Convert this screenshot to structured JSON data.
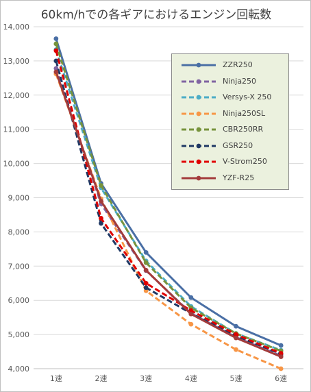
{
  "chart_data": {
    "type": "line",
    "title": "60km/hでの各ギアにおけるエンジン回転数",
    "categories": [
      "1速",
      "2速",
      "3速",
      "4速",
      "5速",
      "6速"
    ],
    "y_ticks": [
      "4,000",
      "5,000",
      "6,000",
      "7,000",
      "8,000",
      "9,000",
      "10,000",
      "11,000",
      "12,000",
      "13,000",
      "14,000"
    ],
    "ylim": [
      4000,
      14000
    ],
    "grid": true,
    "legend_position": "top-right",
    "series": [
      {
        "name": "ZZR250",
        "color": "#4a6fa5",
        "dash": "solid",
        "values": [
          13650,
          9420,
          7400,
          6080,
          5240,
          4680
        ]
      },
      {
        "name": "Ninja250",
        "color": "#8064a2",
        "dash": "dashed",
        "values": [
          12780,
          8820,
          6870,
          5620,
          4920,
          4380
        ]
      },
      {
        "name": "Versys-X 250",
        "color": "#4bacc6",
        "dash": "dashed",
        "values": [
          13330,
          9290,
          7150,
          5820,
          5030,
          4540
        ]
      },
      {
        "name": "Ninja250SL",
        "color": "#f79646",
        "dash": "dashed",
        "values": [
          12620,
          8970,
          6280,
          5300,
          4560,
          4000
        ]
      },
      {
        "name": "CBR250RR",
        "color": "#77933c",
        "dash": "dashed",
        "values": [
          13500,
          9360,
          7100,
          5780,
          5030,
          4520
        ]
      },
      {
        "name": "GSR250",
        "color": "#1f3864",
        "dash": "dashed",
        "values": [
          13000,
          8250,
          6370,
          5620,
          4960,
          4430
        ]
      },
      {
        "name": "V-Strom250",
        "color": "#e00000",
        "dash": "dashed",
        "values": [
          13300,
          8400,
          6500,
          5700,
          5000,
          4450
        ]
      },
      {
        "name": "YZF-R25",
        "color": "#a33b3b",
        "dash": "solid",
        "values": [
          12680,
          8900,
          6880,
          5600,
          4900,
          4350
        ]
      }
    ]
  }
}
